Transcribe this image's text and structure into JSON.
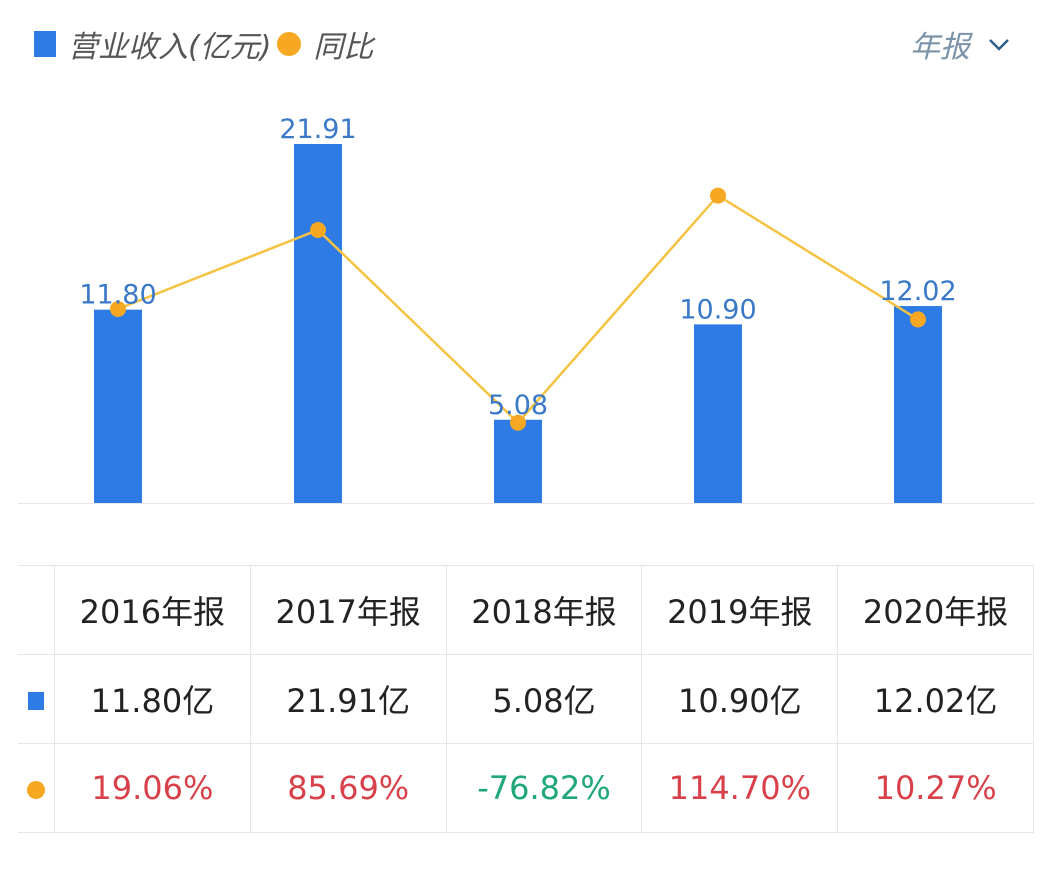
{
  "legend": {
    "bar_label": "营业收入(亿元)",
    "line_label": "同比"
  },
  "period_selector": {
    "value": "年报",
    "icon": "chevron-down-icon"
  },
  "colors": {
    "bar": "#2f7be6",
    "line": "#f5c242",
    "point": "#f7a823",
    "positive": "#d9414a",
    "negative": "#1fa77a",
    "bar_label": "#3a78c8"
  },
  "chart_data": {
    "type": "bar",
    "categories": [
      "2016年报",
      "2017年报",
      "2018年报",
      "2019年报",
      "2020年报"
    ],
    "series": [
      {
        "name": "营业收入(亿元)",
        "type": "bar",
        "values": [
          11.8,
          21.91,
          5.08,
          10.9,
          12.02
        ],
        "labels": [
          "11.80",
          "21.91",
          "5.08",
          "10.90",
          "12.02"
        ]
      },
      {
        "name": "同比",
        "type": "line",
        "values": [
          19.06,
          85.69,
          -76.82,
          114.7,
          10.27
        ]
      }
    ],
    "grid": false,
    "legend_position": "top-left"
  },
  "table": {
    "headers": [
      "2016年报",
      "2017年报",
      "2018年报",
      "2019年报",
      "2020年报"
    ],
    "revenue": [
      "11.80亿",
      "21.91亿",
      "5.08亿",
      "10.90亿",
      "12.02亿"
    ],
    "yoy": [
      "19.06%",
      "85.69%",
      "-76.82%",
      "114.70%",
      "10.27%"
    ]
  }
}
